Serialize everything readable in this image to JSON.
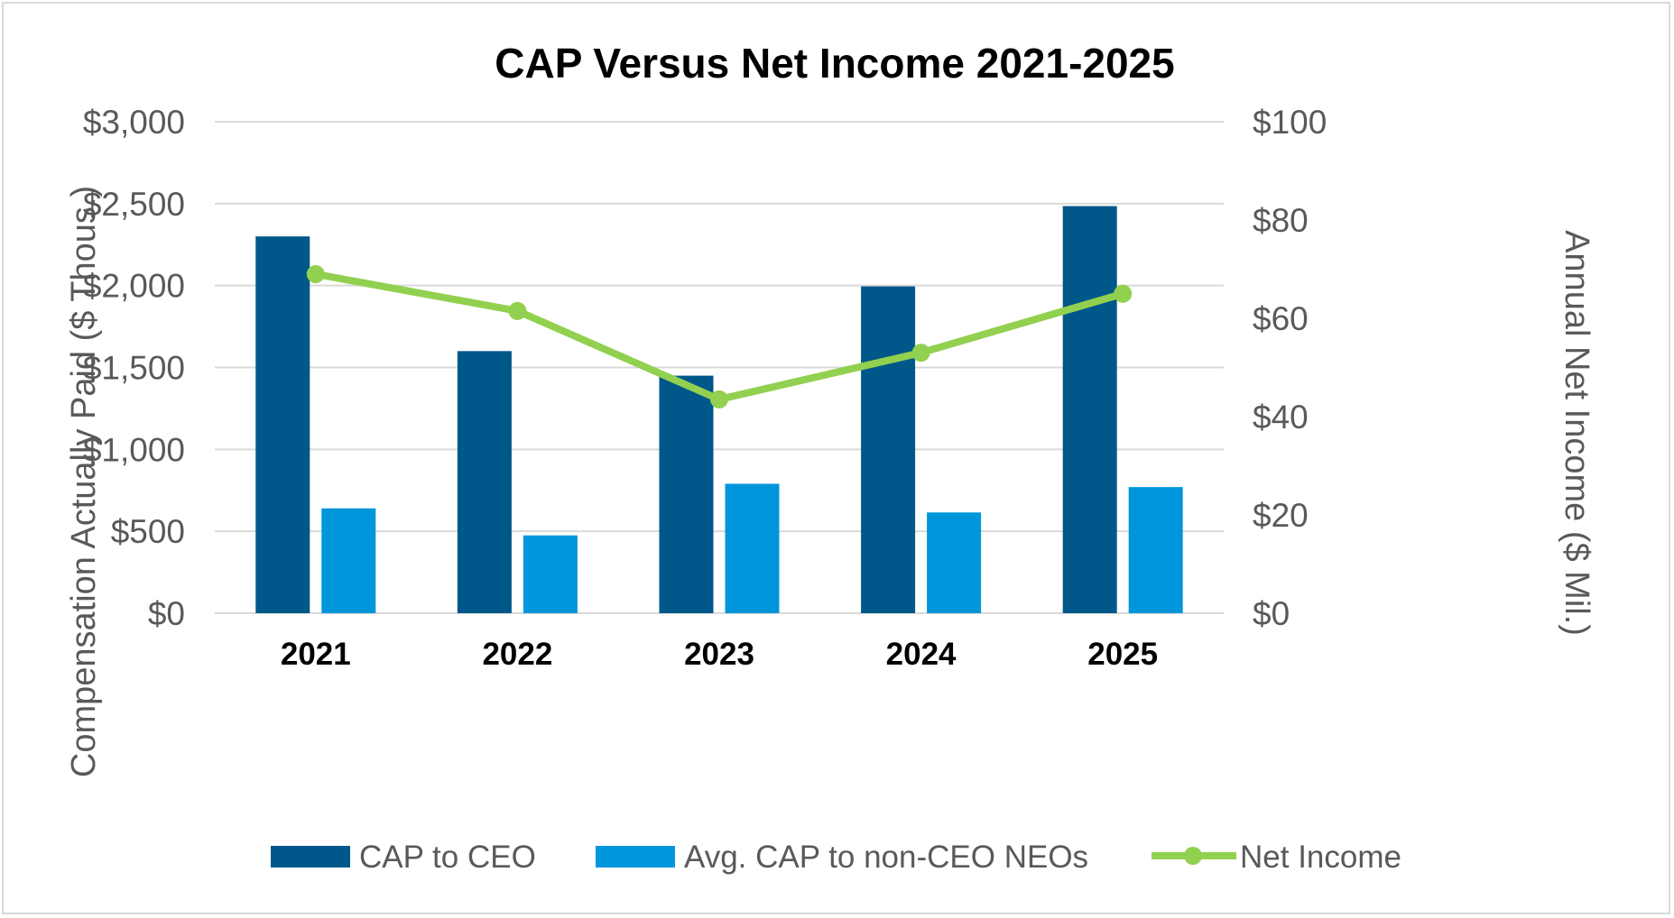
{
  "chart_data": {
    "type": "bar",
    "title": "CAP Versus Net Income 2021-2025",
    "categories": [
      "2021",
      "2022",
      "2023",
      "2024",
      "2025"
    ],
    "series": [
      {
        "name": "CAP to CEO",
        "type": "bar",
        "axis": "left",
        "color": "#00578a",
        "values": [
          2300,
          1600,
          1450,
          1995,
          2485
        ]
      },
      {
        "name": "Avg. CAP to non-CEO NEOs",
        "type": "bar",
        "axis": "left",
        "color": "#0096db",
        "values": [
          640,
          475,
          790,
          615,
          770
        ]
      },
      {
        "name": "Net Income",
        "type": "line",
        "axis": "right",
        "color": "#92d050",
        "values": [
          69,
          61.5,
          43.5,
          53,
          65
        ]
      }
    ],
    "ylabel": "Compensation Actually Paid ($ Thous.)",
    "y2label": "Annual Net Income ($ Mil.)",
    "ylim": [
      0,
      3000
    ],
    "y2lim": [
      0,
      100
    ],
    "yticks": [
      "$0",
      "$500",
      "$1,000",
      "$1,500",
      "$2,000",
      "$2,500",
      "$3,000"
    ],
    "y2ticks": [
      "$0",
      "$20",
      "$40",
      "$60",
      "$80",
      "$100"
    ],
    "grid": true,
    "legend": "bottom"
  }
}
